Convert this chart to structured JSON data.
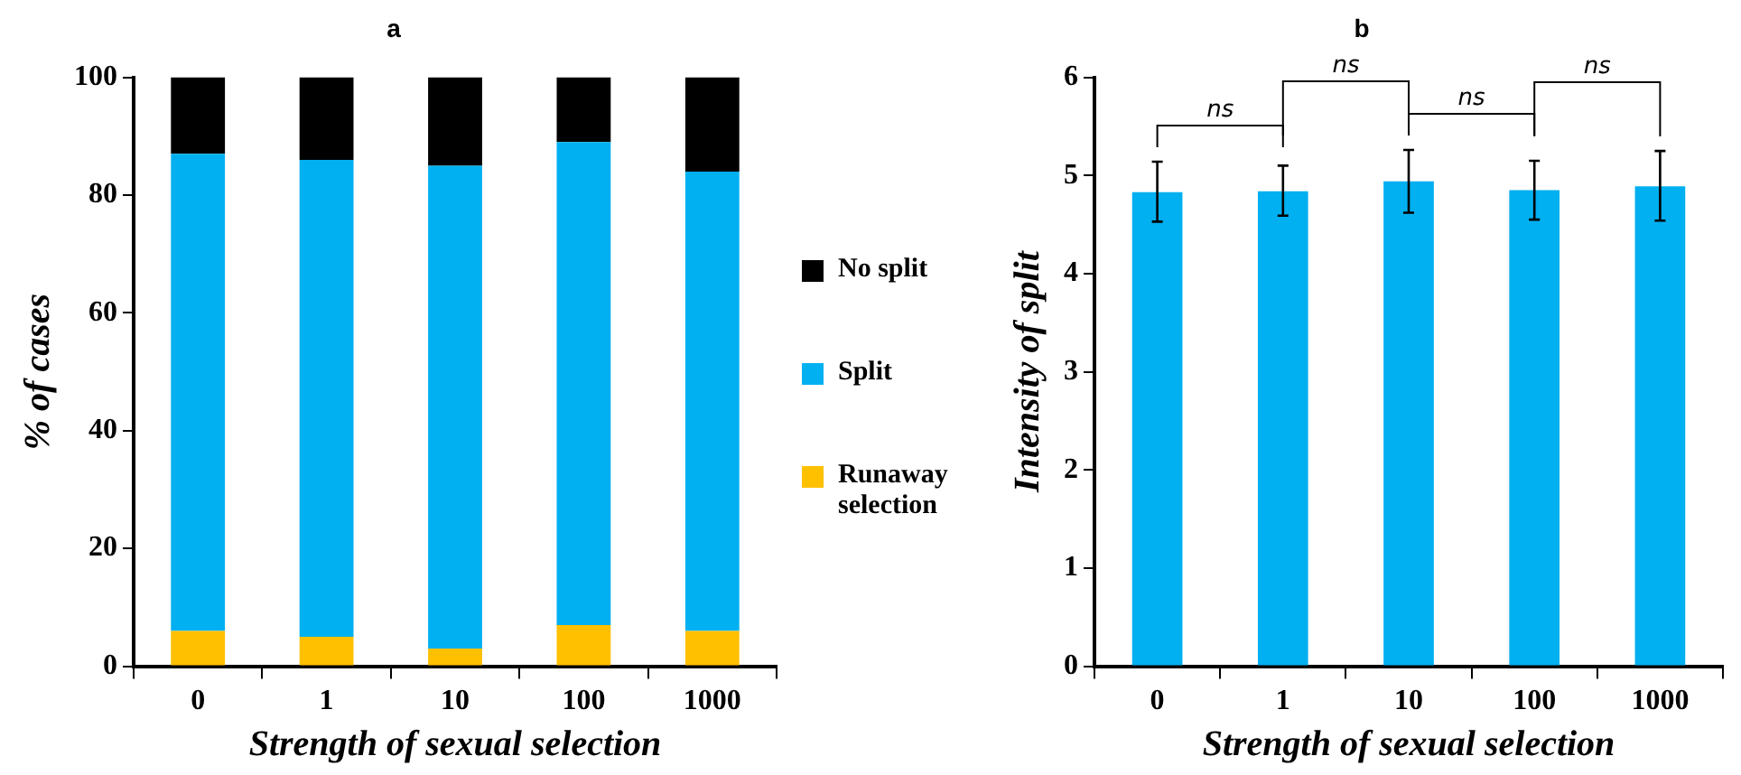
{
  "chart_data": [
    {
      "type": "bar",
      "title": "a",
      "xlabel": "Strength of sexual selection",
      "ylabel": "% of cases",
      "categories": [
        "0",
        "1",
        "10",
        "100",
        "1000"
      ],
      "stacked": true,
      "series": [
        {
          "name": "Runaway selection",
          "color": "#ffc000",
          "values": [
            6,
            5,
            3,
            7,
            6
          ]
        },
        {
          "name": "Split",
          "color": "#00b0f0",
          "values": [
            81,
            81,
            82,
            82,
            78
          ]
        },
        {
          "name": "No split",
          "color": "#000000",
          "values": [
            13,
            14,
            15,
            11,
            16
          ]
        }
      ],
      "ylim": [
        0,
        100
      ],
      "yticks": [
        0,
        20,
        40,
        60,
        80,
        100
      ],
      "grid": false,
      "legend": "right"
    },
    {
      "type": "bar",
      "title": "b",
      "xlabel": "Strength of sexual selection",
      "ylabel": "Intensity of split",
      "categories": [
        "0",
        "1",
        "10",
        "100",
        "1000"
      ],
      "color": "#00b0f0",
      "values": [
        4.83,
        4.84,
        4.94,
        4.85,
        4.89
      ],
      "errors": [
        [
          4.53,
          5.14
        ],
        [
          4.59,
          5.1
        ],
        [
          4.62,
          5.26
        ],
        [
          4.55,
          5.15
        ],
        [
          4.54,
          5.25
        ]
      ],
      "ylim": [
        0,
        6
      ],
      "yticks": [
        0,
        1,
        2,
        3,
        4,
        5,
        6
      ],
      "grid": false,
      "annotations": [
        "ns",
        "ns",
        "ns",
        "ns"
      ]
    }
  ]
}
